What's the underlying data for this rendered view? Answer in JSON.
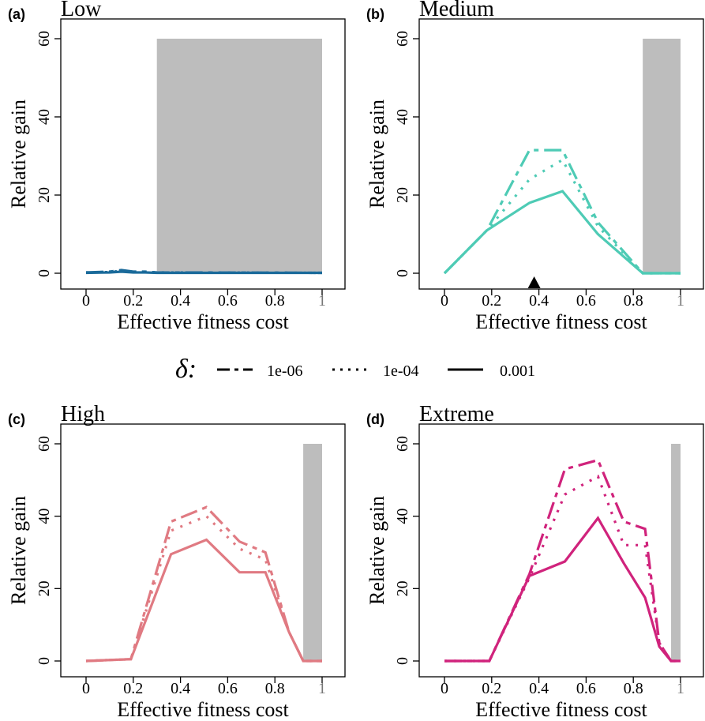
{
  "legend": {
    "symbol": "δ:",
    "items": [
      {
        "label": "1e-06",
        "style": "dashed"
      },
      {
        "label": "1e-04",
        "style": "dotted"
      },
      {
        "label": "0.001",
        "style": "solid"
      }
    ]
  },
  "chart_data": [
    {
      "type": "line",
      "panel_label": "(a)",
      "title": "Low",
      "xlabel": "Effective fitness cost",
      "ylabel": "Relative gain",
      "xlim": [
        0,
        1
      ],
      "ylim": [
        0,
        60
      ],
      "x_ticks": [
        "0",
        "0.2",
        "0.4",
        "0.6",
        "0.8",
        "1"
      ],
      "y_ticks": [
        "0",
        "20",
        "40",
        "60"
      ],
      "color": "#1a6a9a",
      "shaded_region": {
        "x_start": 0.3,
        "x_end": 1,
        "color": "#bdbdbd"
      },
      "marker": null,
      "series": [
        {
          "style": "dashed",
          "x": [
            0,
            0.1,
            0.15,
            0.2,
            0.25,
            0.3,
            1
          ],
          "y": [
            0.2,
            0.4,
            0.8,
            0.4,
            0.4,
            0.2,
            0.1
          ]
        },
        {
          "style": "dotted",
          "x": [
            0,
            0.1,
            0.15,
            0.2,
            0.25,
            0.3,
            1
          ],
          "y": [
            0.2,
            0.3,
            0.6,
            0.3,
            0.3,
            0.2,
            0.1
          ]
        },
        {
          "style": "solid",
          "x": [
            0,
            0.1,
            0.15,
            0.2,
            0.25,
            0.3,
            1
          ],
          "y": [
            0.1,
            0.2,
            0.4,
            0.2,
            0.2,
            0.1,
            0.1
          ]
        }
      ]
    },
    {
      "type": "line",
      "panel_label": "(b)",
      "title": "Medium",
      "xlabel": "Effective fitness cost",
      "ylabel": "Relative gain",
      "xlim": [
        0,
        1
      ],
      "ylim": [
        0,
        60
      ],
      "x_ticks": [
        "0",
        "0.2",
        "0.4",
        "0.6",
        "0.8",
        "1"
      ],
      "y_ticks": [
        "0",
        "20",
        "40",
        "60"
      ],
      "color": "#4ecbb5",
      "shaded_region": {
        "x_start": 0.84,
        "x_end": 1,
        "color": "#bdbdbd"
      },
      "marker": {
        "x": 0.38,
        "shape": "triangle"
      },
      "series": [
        {
          "style": "dashed",
          "x": [
            0,
            0.18,
            0.36,
            0.5,
            0.65,
            0.84,
            1
          ],
          "y": [
            0,
            11,
            31.5,
            31.5,
            13,
            0,
            0
          ]
        },
        {
          "style": "dotted",
          "x": [
            0,
            0.18,
            0.36,
            0.5,
            0.65,
            0.84,
            1
          ],
          "y": [
            0,
            11,
            24,
            29,
            12,
            0,
            0
          ]
        },
        {
          "style": "solid",
          "x": [
            0,
            0.18,
            0.36,
            0.5,
            0.65,
            0.84,
            1
          ],
          "y": [
            0,
            11,
            18,
            21,
            10,
            0,
            0
          ]
        }
      ]
    },
    {
      "type": "line",
      "panel_label": "(c)",
      "title": "High",
      "xlabel": "Effective fitness cost",
      "ylabel": "Relative gain",
      "xlim": [
        0,
        1
      ],
      "ylim": [
        0,
        60
      ],
      "x_ticks": [
        "0",
        "0.2",
        "0.4",
        "0.6",
        "0.8",
        "1"
      ],
      "y_ticks": [
        "0",
        "20",
        "40",
        "60"
      ],
      "color": "#e07a82",
      "shaded_region": {
        "x_start": 0.92,
        "x_end": 1,
        "color": "#bdbdbd"
      },
      "marker": null,
      "series": [
        {
          "style": "dashed",
          "x": [
            0,
            0.19,
            0.36,
            0.51,
            0.65,
            0.76,
            0.86,
            0.92,
            1
          ],
          "y": [
            0,
            0.5,
            38.5,
            42.5,
            33,
            30,
            8,
            0,
            0
          ]
        },
        {
          "style": "dotted",
          "x": [
            0,
            0.19,
            0.36,
            0.51,
            0.65,
            0.76,
            0.86,
            0.92,
            1
          ],
          "y": [
            0,
            0.5,
            36,
            40,
            31,
            28,
            8,
            0,
            0
          ]
        },
        {
          "style": "solid",
          "x": [
            0,
            0.19,
            0.36,
            0.51,
            0.65,
            0.76,
            0.86,
            0.92,
            1
          ],
          "y": [
            0,
            0.5,
            29.5,
            33.5,
            24.5,
            24.5,
            8,
            0,
            0
          ]
        }
      ]
    },
    {
      "type": "line",
      "panel_label": "(d)",
      "title": "Extreme",
      "xlabel": "Effective fitness cost",
      "ylabel": "Relative gain",
      "xlim": [
        0,
        1
      ],
      "ylim": [
        0,
        60
      ],
      "x_ticks": [
        "0",
        "0.2",
        "0.4",
        "0.6",
        "0.8",
        "1"
      ],
      "y_ticks": [
        "0",
        "20",
        "40",
        "60"
      ],
      "color": "#d0237c",
      "shaded_region": {
        "x_start": 0.96,
        "x_end": 1,
        "color": "#bdbdbd"
      },
      "marker": null,
      "series": [
        {
          "style": "dashed",
          "x": [
            0,
            0.19,
            0.36,
            0.51,
            0.65,
            0.76,
            0.85,
            0.91,
            0.96,
            1
          ],
          "y": [
            0,
            0,
            24,
            53,
            55.5,
            38.5,
            36.5,
            5,
            0,
            0
          ]
        },
        {
          "style": "dotted",
          "x": [
            0,
            0.19,
            0.36,
            0.51,
            0.65,
            0.76,
            0.85,
            0.91,
            0.96,
            1
          ],
          "y": [
            0,
            0,
            23,
            46,
            51,
            32,
            32,
            5,
            0,
            0
          ]
        },
        {
          "style": "solid",
          "x": [
            0,
            0.19,
            0.36,
            0.51,
            0.65,
            0.76,
            0.85,
            0.91,
            0.96,
            1
          ],
          "y": [
            0,
            0,
            23.5,
            27.5,
            39.5,
            27,
            17.5,
            4,
            0,
            0
          ]
        }
      ]
    }
  ]
}
